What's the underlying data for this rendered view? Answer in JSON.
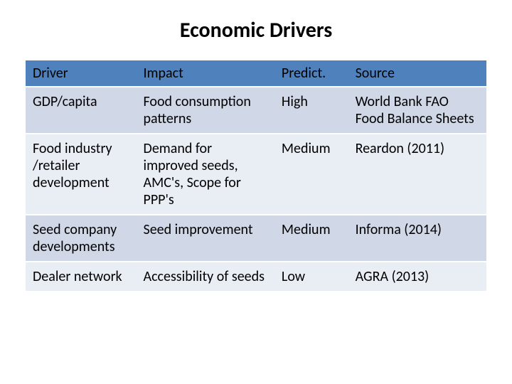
{
  "title": "Economic Drivers",
  "table": {
    "columns": [
      "Driver",
      "Impact",
      "Predict.",
      "Source"
    ],
    "header_bg": "#4f81bd",
    "band_colors": [
      "#d0d8e8",
      "#e9edf4"
    ],
    "rows": [
      {
        "driver": "GDP/capita",
        "impact": "Food consumption patterns",
        "predict": "High",
        "source": "World Bank FAO Food Balance Sheets"
      },
      {
        "driver": "Food industry /retailer development",
        "impact": "Demand for improved seeds, AMC's,\nScope for PPP's",
        "predict": "Medium",
        "source": "Reardon (2011)"
      },
      {
        "driver": "Seed company developments",
        "impact": "Seed improvement",
        "predict": "Medium",
        "source": "Informa (2014)"
      },
      {
        "driver": "Dealer network",
        "impact": "Accessibility of seeds",
        "predict": "Low",
        "source": "AGRA (2013)"
      }
    ]
  }
}
